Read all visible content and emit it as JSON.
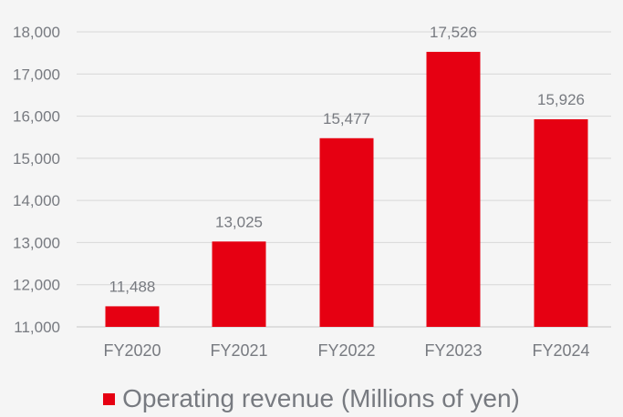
{
  "chart_data": {
    "type": "bar",
    "categories": [
      "FY2020",
      "FY2021",
      "FY2022",
      "FY2023",
      "FY2024"
    ],
    "series": [
      {
        "name": "Operating revenue (Millions of yen)",
        "values": [
          11488,
          13025,
          15477,
          17526,
          15926
        ]
      }
    ],
    "value_labels": [
      "11,488",
      "13,025",
      "15,477",
      "17,526",
      "15,926"
    ],
    "y_ticks": [
      "11,000",
      "12,000",
      "13,000",
      "14,000",
      "15,000",
      "16,000",
      "17,000",
      "18,000"
    ],
    "ylim": [
      11000,
      18000
    ],
    "grid": true,
    "legend_position": "bottom",
    "colors": {
      "bar": "#e60012",
      "text": "#777a80",
      "grid": "#d7d7d7",
      "background": "#f5f5f5"
    }
  }
}
